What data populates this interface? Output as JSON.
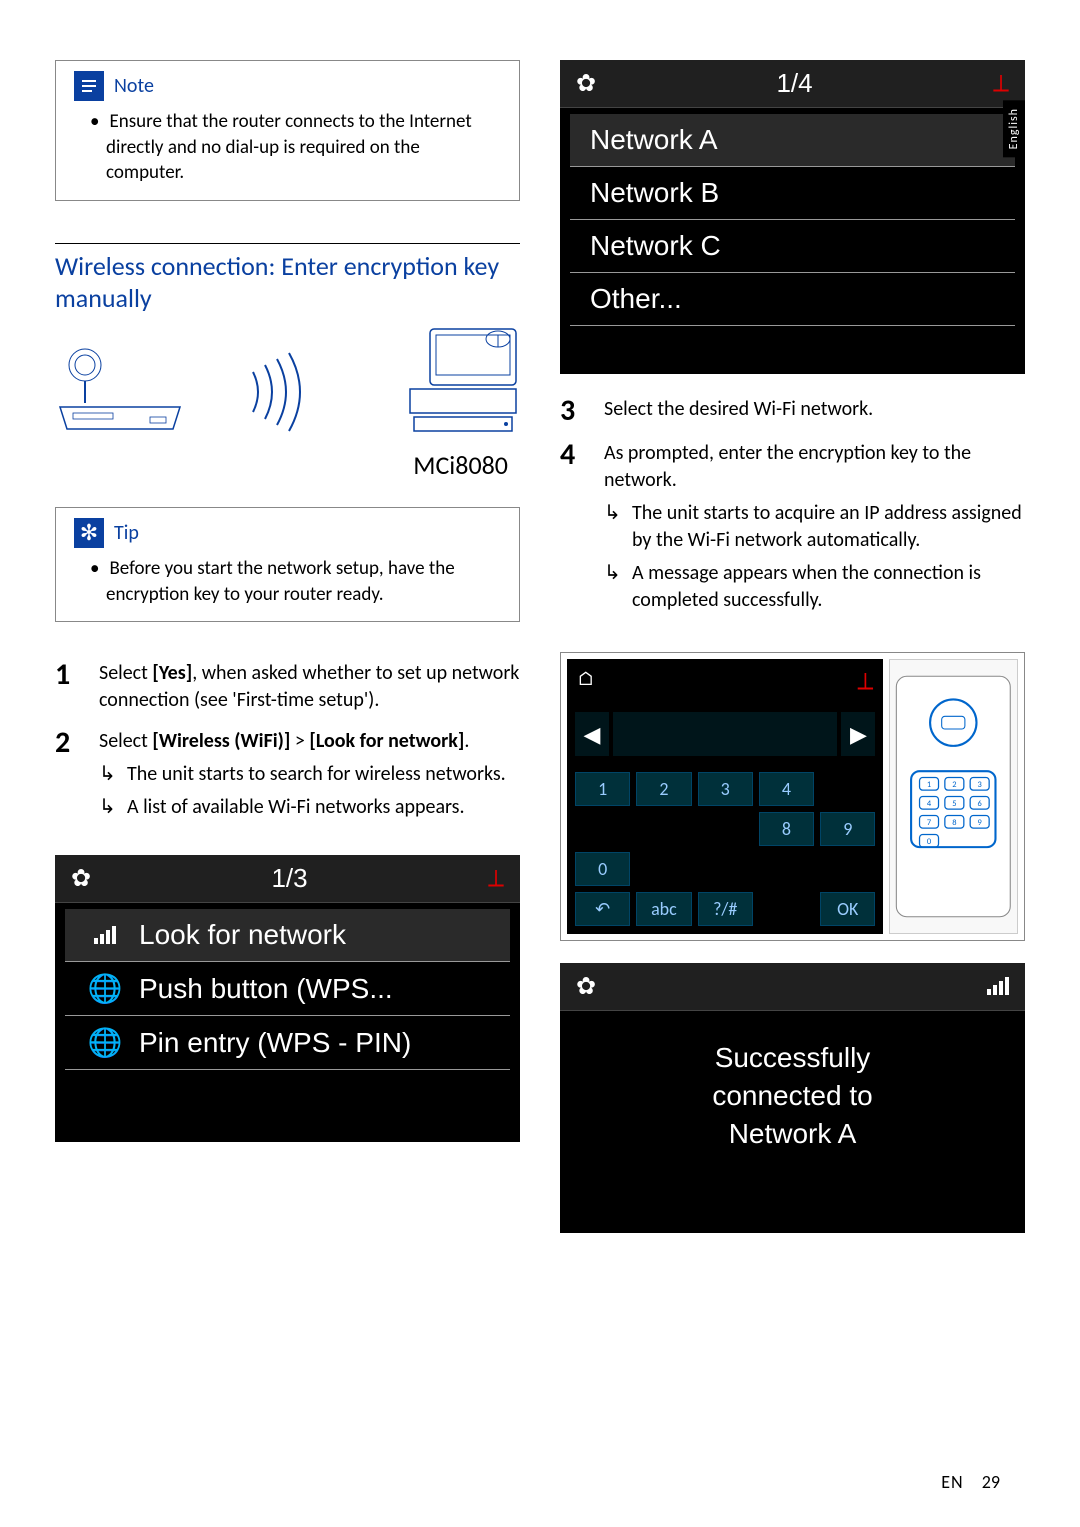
{
  "note": {
    "title": "Note",
    "items": [
      "Ensure that the router connects to the Internet directly and no dial-up is required on the computer."
    ]
  },
  "section_title": "Wireless connection: Enter encryption key manually",
  "model": "MCi8080",
  "tip": {
    "title": "Tip",
    "items": [
      "Before you start the network setup, have the encryption key to your router ready."
    ]
  },
  "steps_left": [
    {
      "num": "1",
      "text_parts": [
        "Select ",
        "[Yes]",
        ", when asked whether to set up network connection (see 'First-time setup')."
      ],
      "subs": []
    },
    {
      "num": "2",
      "text_parts": [
        "Select ",
        "[Wireless (WiFi)]",
        " > ",
        "[Look for network]",
        "."
      ],
      "subs": [
        "The unit starts to search for wireless networks.",
        "A list of available Wi-Fi networks appears."
      ]
    }
  ],
  "screen1": {
    "counter": "1/3",
    "items": [
      {
        "icon": "signal",
        "label": "Look for network",
        "selected": true
      },
      {
        "icon": "globe",
        "label": "Push button (WPS...",
        "selected": false
      },
      {
        "icon": "globe",
        "label": "Pin entry (WPS - PIN)",
        "selected": false
      }
    ]
  },
  "screen2": {
    "counter": "1/4",
    "items": [
      {
        "label": "Network A",
        "selected": true
      },
      {
        "label": "Network B",
        "selected": false
      },
      {
        "label": "Network C",
        "selected": false
      },
      {
        "label": "Other...",
        "selected": false
      }
    ]
  },
  "steps_right": [
    {
      "num": "3",
      "text_parts": [
        "Select the desired Wi-Fi network."
      ],
      "subs": []
    },
    {
      "num": "4",
      "text_parts": [
        "As prompted, enter the encryption key to the network."
      ],
      "subs": [
        "The unit starts to acquire an IP address assigned by the Wi-Fi network automatically.",
        "A message appears when the connection is completed successfully."
      ]
    }
  ],
  "keypad_keys": [
    "1",
    "2",
    "3",
    "4",
    "",
    "",
    "",
    "",
    "8",
    "9",
    "0",
    "",
    "",
    "",
    "",
    "↶",
    "abc",
    "?/#",
    "",
    "OK"
  ],
  "remote_keys": [
    "1",
    "2",
    "3",
    "4",
    "5",
    "6",
    "7",
    "8",
    "9",
    "0"
  ],
  "success": {
    "line1": "Successfully",
    "line2": "connected to",
    "line3": "Network A"
  },
  "lang_tab": "English",
  "footer": {
    "lang": "EN",
    "page": "29"
  },
  "colors": {
    "accent": "#0a40a0",
    "antenna": "#d00000"
  }
}
